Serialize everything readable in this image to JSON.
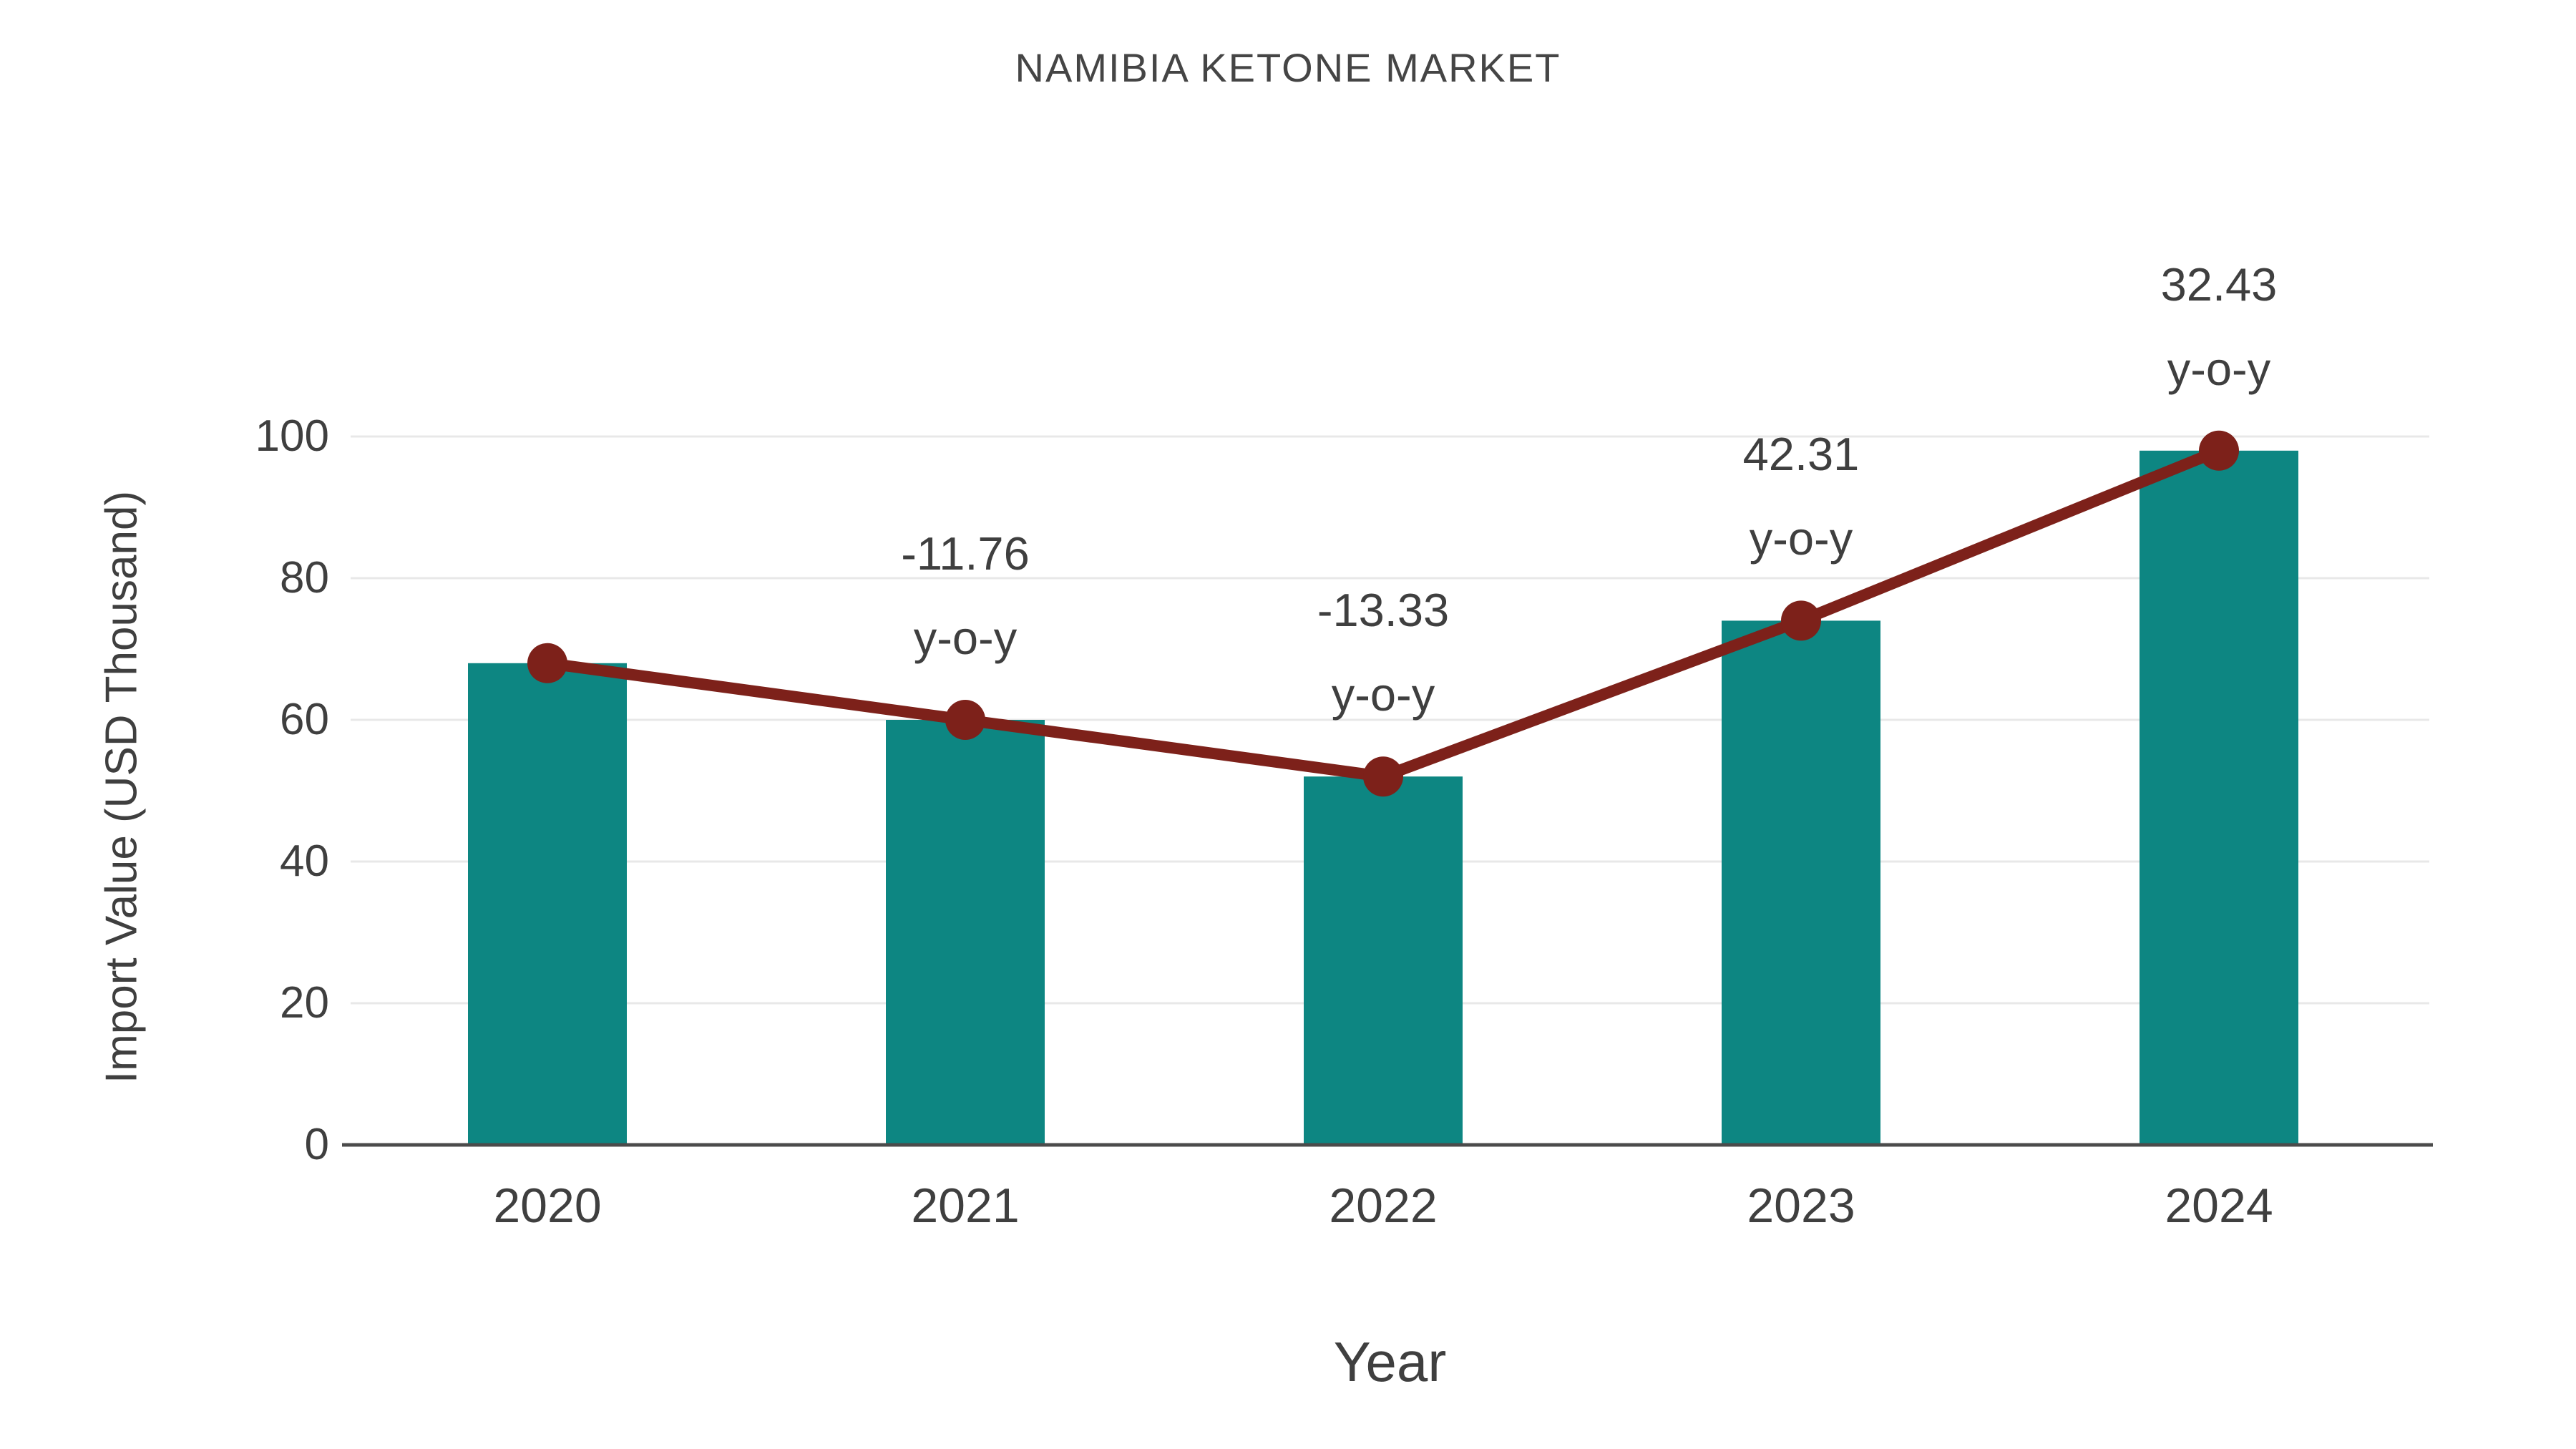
{
  "title": "NAMIBIA KETONE MARKET",
  "colors": {
    "bar": "#0d8682",
    "line": "#7d211a",
    "text": "#3f3f3f",
    "title_text": "#454545",
    "grid": "#e8e8e8",
    "axis": "#4b4b4b",
    "background": "#ffffff"
  },
  "chart_data": {
    "type": "bar",
    "title": "NAMIBIA KETONE MARKET",
    "xlabel": "Year",
    "ylabel": "Import Value (USD Thousand)",
    "categories": [
      "2020",
      "2021",
      "2022",
      "2023",
      "2024"
    ],
    "series": [
      {
        "name": "Import Value",
        "type": "bar",
        "values": [
          68,
          60,
          52,
          74,
          98
        ]
      },
      {
        "name": "y-o-y trend",
        "type": "line",
        "values": [
          68,
          60,
          52,
          74,
          98
        ]
      }
    ],
    "annotations": [
      {
        "category": "2021",
        "value_label": "-11.76",
        "suffix": "y-o-y"
      },
      {
        "category": "2022",
        "value_label": "-13.33",
        "suffix": "y-o-y"
      },
      {
        "category": "2023",
        "value_label": "42.31",
        "suffix": "y-o-y"
      },
      {
        "category": "2024",
        "value_label": "32.43",
        "suffix": "y-o-y"
      }
    ],
    "yticks": [
      0,
      20,
      40,
      60,
      80,
      100
    ],
    "ylim": [
      0,
      105
    ],
    "grid": true,
    "legend_position": "none"
  }
}
